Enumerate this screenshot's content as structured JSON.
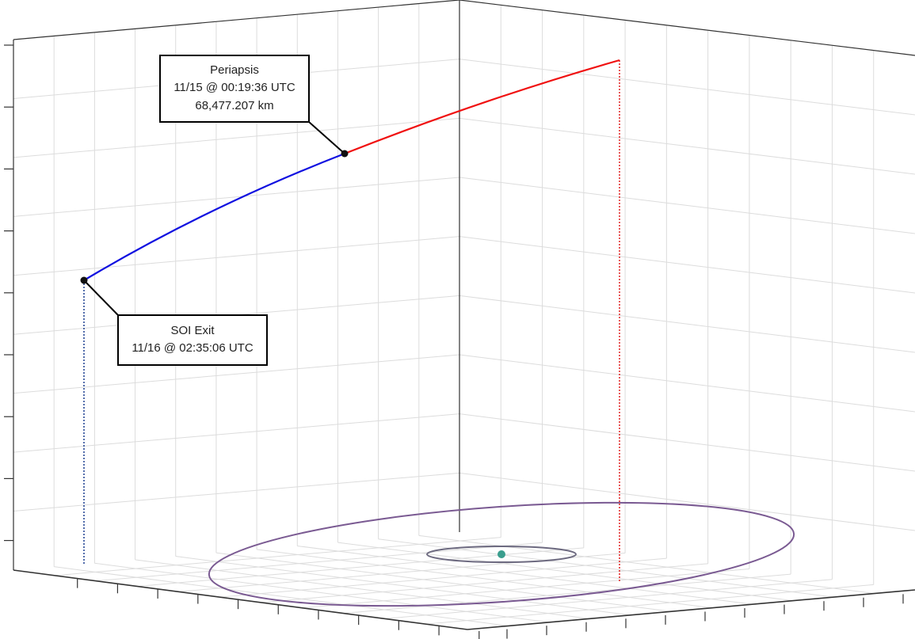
{
  "annotations": [
    {
      "lines": [
        "Periapsis",
        "11/15 @ 00:19:36 UTC",
        "68,477.207 km"
      ]
    },
    {
      "lines": [
        "SOI Exit",
        "11/16 @ 02:35:06 UTC"
      ]
    }
  ]
}
